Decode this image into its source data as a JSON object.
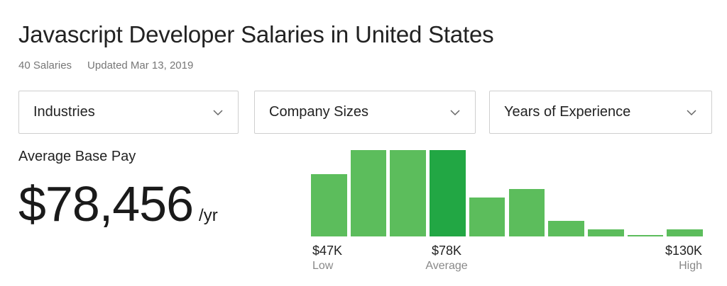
{
  "header": {
    "title": "Javascript Developer Salaries in United States",
    "salary_count": "40 Salaries",
    "updated": "Updated Mar 13, 2019"
  },
  "filters": [
    {
      "label": "Industries",
      "icon": "chevron-down-icon"
    },
    {
      "label": "Company Sizes",
      "icon": "chevron-down-icon"
    },
    {
      "label": "Years of Experience",
      "icon": "chevron-down-icon"
    }
  ],
  "pay": {
    "label": "Average Base Pay",
    "value": "$78,456",
    "unit": "/yr"
  },
  "histogram": {
    "bar_heights_relative": [
      0.72,
      1.0,
      1.0,
      1.0,
      0.45,
      0.55,
      0.18,
      0.08,
      0.015,
      0.08
    ],
    "highlight_index": 3,
    "bar_color": "#5cbd5c",
    "highlight_color": "#22a744",
    "low": {
      "value": "$47K",
      "caption": "Low"
    },
    "average": {
      "value": "$78K",
      "caption": "Average"
    },
    "high": {
      "value": "$130K",
      "caption": "High"
    }
  }
}
